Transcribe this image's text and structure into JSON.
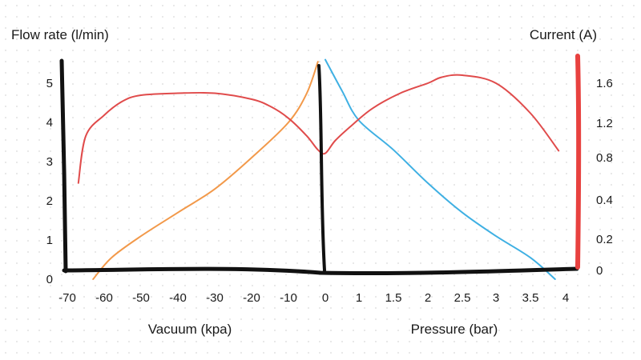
{
  "chart_data": {
    "type": "line",
    "left_axis_title": "Flow rate (l/min)",
    "right_axis_title": "Current (A)",
    "vacuum_axis_title": "Vacuum (kpa)",
    "pressure_axis_title": "Pressure (bar)",
    "flow_ticks": [
      "0",
      "1",
      "2",
      "3",
      "4",
      "5"
    ],
    "current_ticks": [
      "0",
      "0.2",
      "0.4",
      "0.8",
      "1.2",
      "1.6"
    ],
    "vacuum_ticks": [
      "-70",
      "-60",
      "-50",
      "-40",
      "-30",
      "-20",
      "-10",
      "0"
    ],
    "pressure_ticks": [
      "1",
      "1.5",
      "2",
      "2.5",
      "3",
      "3.5",
      "4"
    ],
    "series": [
      {
        "color": "#f2994a",
        "axis": "flow_vs_vacuum",
        "points": [
          [
            -63,
            0
          ],
          [
            -58,
            0.55
          ],
          [
            -50,
            1.1
          ],
          [
            -40,
            1.7
          ],
          [
            -30,
            2.3
          ],
          [
            -20,
            3.1
          ],
          [
            -10,
            4.0
          ],
          [
            -5,
            4.75
          ],
          [
            -2,
            5.55
          ]
        ]
      },
      {
        "color": "#3fb0e3",
        "axis": "flow_vs_pressure",
        "points": [
          [
            0,
            5.6
          ],
          [
            0.5,
            4.8
          ],
          [
            1,
            4.05
          ],
          [
            1.5,
            3.3
          ],
          [
            2,
            2.45
          ],
          [
            2.5,
            1.7
          ],
          [
            3,
            1.1
          ],
          [
            3.5,
            0.55
          ],
          [
            3.85,
            0
          ]
        ]
      },
      {
        "color": "#e04b4b",
        "axis": "current",
        "points": [
          [
            -67,
            0.56
          ],
          [
            -65,
            1.05
          ],
          [
            -60,
            1.28
          ],
          [
            -55,
            1.42
          ],
          [
            -50,
            1.48
          ],
          [
            -40,
            1.5
          ],
          [
            -30,
            1.5
          ],
          [
            -20,
            1.44
          ],
          [
            -15,
            1.37
          ],
          [
            -10,
            1.25
          ],
          [
            -5,
            1.05
          ],
          [
            -2,
            0.89
          ],
          [
            0,
            0.85
          ],
          [
            0.3,
            1.0
          ],
          [
            0.8,
            1.18
          ],
          [
            1.2,
            1.35
          ],
          [
            1.6,
            1.5
          ],
          [
            2.0,
            1.6
          ],
          [
            2.2,
            1.66
          ],
          [
            2.5,
            1.68
          ],
          [
            3.0,
            1.6
          ],
          [
            3.5,
            1.3
          ],
          [
            3.9,
            0.88
          ]
        ]
      }
    ]
  }
}
